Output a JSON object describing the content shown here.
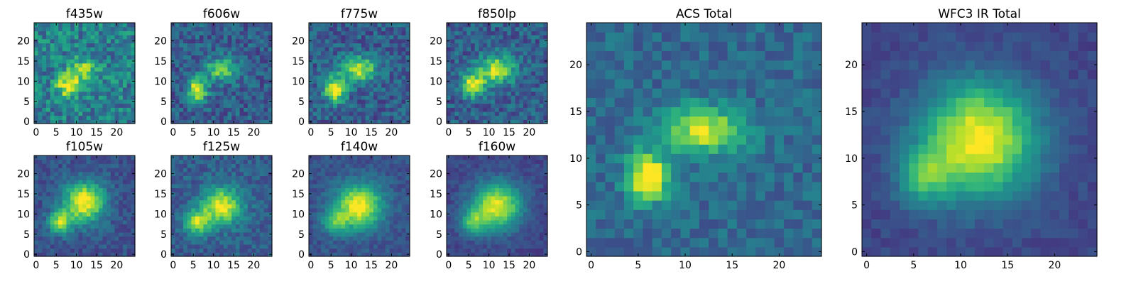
{
  "colormap": "viridis",
  "chart_data": [
    {
      "type": "heatmap",
      "title": "f435w",
      "ticks": {
        "x": [
          0,
          5,
          10,
          15,
          20
        ],
        "y": [
          0,
          5,
          10,
          15,
          20
        ]
      },
      "xlim": [
        -0.5,
        24.5
      ],
      "ylim": [
        -0.5,
        24.5
      ],
      "grid": false,
      "pixels": {
        "size": 25,
        "sources": [
          {
            "x": 8,
            "y": 9,
            "sx": 2.0,
            "sy": 2.0,
            "amp": 0.7
          },
          {
            "x": 12,
            "y": 13,
            "sx": 2.5,
            "sy": 2.0,
            "amp": 0.45
          }
        ],
        "base": 0.5,
        "noise": 0.45,
        "seed": 11
      }
    },
    {
      "type": "heatmap",
      "title": "f606w",
      "ticks": {
        "x": [
          0,
          5,
          10,
          15,
          20
        ],
        "y": [
          0,
          5,
          10,
          15,
          20
        ]
      },
      "xlim": [
        -0.5,
        24.5
      ],
      "ylim": [
        -0.5,
        24.5
      ],
      "grid": false,
      "pixels": {
        "size": 25,
        "sources": [
          {
            "x": 6,
            "y": 8,
            "sx": 1.6,
            "sy": 2.0,
            "amp": 0.9
          },
          {
            "x": 12,
            "y": 13,
            "sx": 2.8,
            "sy": 2.0,
            "amp": 0.6
          }
        ],
        "base": 0.35,
        "noise": 0.35,
        "seed": 23
      }
    },
    {
      "type": "heatmap",
      "title": "f775w",
      "ticks": {
        "x": [
          0,
          5,
          10,
          15,
          20
        ],
        "y": [
          0,
          5,
          10,
          15,
          20
        ]
      },
      "xlim": [
        -0.5,
        24.5
      ],
      "ylim": [
        -0.5,
        24.5
      ],
      "grid": false,
      "pixels": {
        "size": 25,
        "sources": [
          {
            "x": 6,
            "y": 8,
            "sx": 1.8,
            "sy": 2.2,
            "amp": 0.9
          },
          {
            "x": 12,
            "y": 13,
            "sx": 3.0,
            "sy": 2.2,
            "amp": 0.7
          }
        ],
        "base": 0.35,
        "noise": 0.35,
        "seed": 37
      }
    },
    {
      "type": "heatmap",
      "title": "f850lp",
      "ticks": {
        "x": [
          0,
          5,
          10,
          15,
          20
        ],
        "y": [
          0,
          5,
          10,
          15,
          20
        ]
      },
      "xlim": [
        -0.5,
        24.5
      ],
      "ylim": [
        -0.5,
        24.5
      ],
      "grid": false,
      "pixels": {
        "size": 25,
        "sources": [
          {
            "x": 6,
            "y": 9,
            "sx": 2.0,
            "sy": 2.0,
            "amp": 0.8
          },
          {
            "x": 12,
            "y": 13,
            "sx": 3.2,
            "sy": 2.4,
            "amp": 0.75
          }
        ],
        "base": 0.35,
        "noise": 0.35,
        "seed": 41
      }
    },
    {
      "type": "heatmap",
      "title": "f105w",
      "ticks": {
        "x": [
          0,
          5,
          10,
          15,
          20
        ],
        "y": [
          0,
          5,
          10,
          15,
          20
        ]
      },
      "xlim": [
        -0.5,
        24.5
      ],
      "ylim": [
        -0.5,
        24.5
      ],
      "grid": false,
      "pixels": {
        "size": 25,
        "sources": [
          {
            "x": 12,
            "y": 13,
            "sx": 3.5,
            "sy": 3.5,
            "amp": 0.9
          },
          {
            "x": 6,
            "y": 8,
            "sx": 2.0,
            "sy": 2.0,
            "amp": 0.7
          }
        ],
        "base": 0.3,
        "noise": 0.22,
        "seed": 53
      }
    },
    {
      "type": "heatmap",
      "title": "f125w",
      "ticks": {
        "x": [
          0,
          5,
          10,
          15,
          20
        ],
        "y": [
          0,
          5,
          10,
          15,
          20
        ]
      },
      "xlim": [
        -0.5,
        24.5
      ],
      "ylim": [
        -0.5,
        24.5
      ],
      "grid": false,
      "pixels": {
        "size": 25,
        "sources": [
          {
            "x": 12,
            "y": 12,
            "sx": 3.5,
            "sy": 3.2,
            "amp": 0.8
          },
          {
            "x": 6,
            "y": 8,
            "sx": 2.2,
            "sy": 2.0,
            "amp": 0.65
          }
        ],
        "base": 0.35,
        "noise": 0.25,
        "seed": 67
      }
    },
    {
      "type": "heatmap",
      "title": "f140w",
      "ticks": {
        "x": [
          0,
          5,
          10,
          15,
          20
        ],
        "y": [
          0,
          5,
          10,
          15,
          20
        ]
      },
      "xlim": [
        -0.5,
        24.5
      ],
      "ylim": [
        -0.5,
        24.5
      ],
      "grid": false,
      "pixels": {
        "size": 25,
        "sources": [
          {
            "x": 12,
            "y": 12,
            "sx": 4.0,
            "sy": 3.8,
            "amp": 0.9
          },
          {
            "x": 6,
            "y": 8,
            "sx": 2.2,
            "sy": 2.0,
            "amp": 0.5
          }
        ],
        "base": 0.3,
        "noise": 0.18,
        "seed": 71
      }
    },
    {
      "type": "heatmap",
      "title": "f160w",
      "ticks": {
        "x": [
          0,
          5,
          10,
          15,
          20
        ],
        "y": [
          0,
          5,
          10,
          15,
          20
        ]
      },
      "xlim": [
        -0.5,
        24.5
      ],
      "ylim": [
        -0.5,
        24.5
      ],
      "grid": false,
      "pixels": {
        "size": 25,
        "sources": [
          {
            "x": 12,
            "y": 12,
            "sx": 4.2,
            "sy": 4.0,
            "amp": 0.9
          },
          {
            "x": 6,
            "y": 8,
            "sx": 2.2,
            "sy": 2.2,
            "amp": 0.5
          }
        ],
        "base": 0.25,
        "noise": 0.15,
        "seed": 83
      }
    },
    {
      "type": "heatmap",
      "title": "ACS Total",
      "ticks": {
        "x": [
          0,
          5,
          10,
          15,
          20
        ],
        "y": [
          0,
          5,
          10,
          15,
          20
        ]
      },
      "xlim": [
        -0.5,
        24.5
      ],
      "ylim": [
        -0.5,
        24.5
      ],
      "grid": false,
      "pixels": {
        "size": 25,
        "sources": [
          {
            "x": 6,
            "y": 8,
            "sx": 1.5,
            "sy": 1.8,
            "amp": 0.95
          },
          {
            "x": 12,
            "y": 13,
            "sx": 3.0,
            "sy": 1.8,
            "amp": 0.7
          }
        ],
        "base": 0.4,
        "noise": 0.25,
        "seed": 97
      }
    },
    {
      "type": "heatmap",
      "title": "WFC3 IR Total",
      "ticks": {
        "x": [
          0,
          5,
          10,
          15,
          20
        ],
        "y": [
          0,
          5,
          10,
          15,
          20
        ]
      },
      "xlim": [
        -0.5,
        24.5
      ],
      "ylim": [
        -0.5,
        24.5
      ],
      "grid": false,
      "pixels": {
        "size": 25,
        "sources": [
          {
            "x": 12,
            "y": 12,
            "sx": 4.2,
            "sy": 4.2,
            "amp": 0.95
          },
          {
            "x": 6,
            "y": 8,
            "sx": 2.0,
            "sy": 2.0,
            "amp": 0.45
          }
        ],
        "base": 0.25,
        "noise": 0.12,
        "seed": 101
      }
    }
  ]
}
